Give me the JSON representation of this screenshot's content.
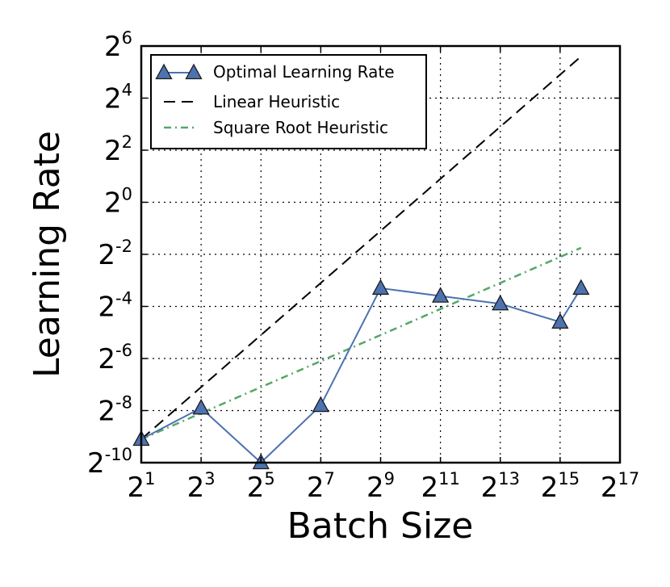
{
  "colors": {
    "optimal": "#4c72b0",
    "linear": "#000000",
    "sqrt": "#55a868",
    "grid": "#000000"
  },
  "chart_data": {
    "type": "line",
    "xlabel": "Batch Size",
    "ylabel": "Learning Rate",
    "x_scale": "log2",
    "y_scale": "log2",
    "xlim_log2": [
      1,
      17
    ],
    "ylim_log2": [
      -10,
      6
    ],
    "x_ticks_log2": [
      1,
      3,
      5,
      7,
      9,
      11,
      13,
      15,
      17
    ],
    "y_ticks_log2": [
      -10,
      -8,
      -6,
      -4,
      -2,
      0,
      2,
      4,
      6
    ],
    "tick_base": "2",
    "grid": true,
    "legend_position": "top-left",
    "series": [
      {
        "name": "Optimal Learning Rate",
        "style": "solid-triangle-markers",
        "x_log2": [
          1,
          3,
          5,
          7,
          9,
          11,
          13,
          15,
          15.7
        ],
        "y_log2": [
          -9.1,
          -7.9,
          -10.0,
          -7.8,
          -3.3,
          -3.6,
          -3.9,
          -4.6,
          -3.3
        ]
      },
      {
        "name": "Linear Heuristic",
        "style": "dashed",
        "x_log2": [
          1,
          15.7
        ],
        "y_log2": [
          -9.1,
          5.6
        ]
      },
      {
        "name": "Square Root Heuristic",
        "style": "dash-dot",
        "x_log2": [
          1,
          15.7
        ],
        "y_log2": [
          -9.1,
          -1.75
        ]
      }
    ]
  }
}
